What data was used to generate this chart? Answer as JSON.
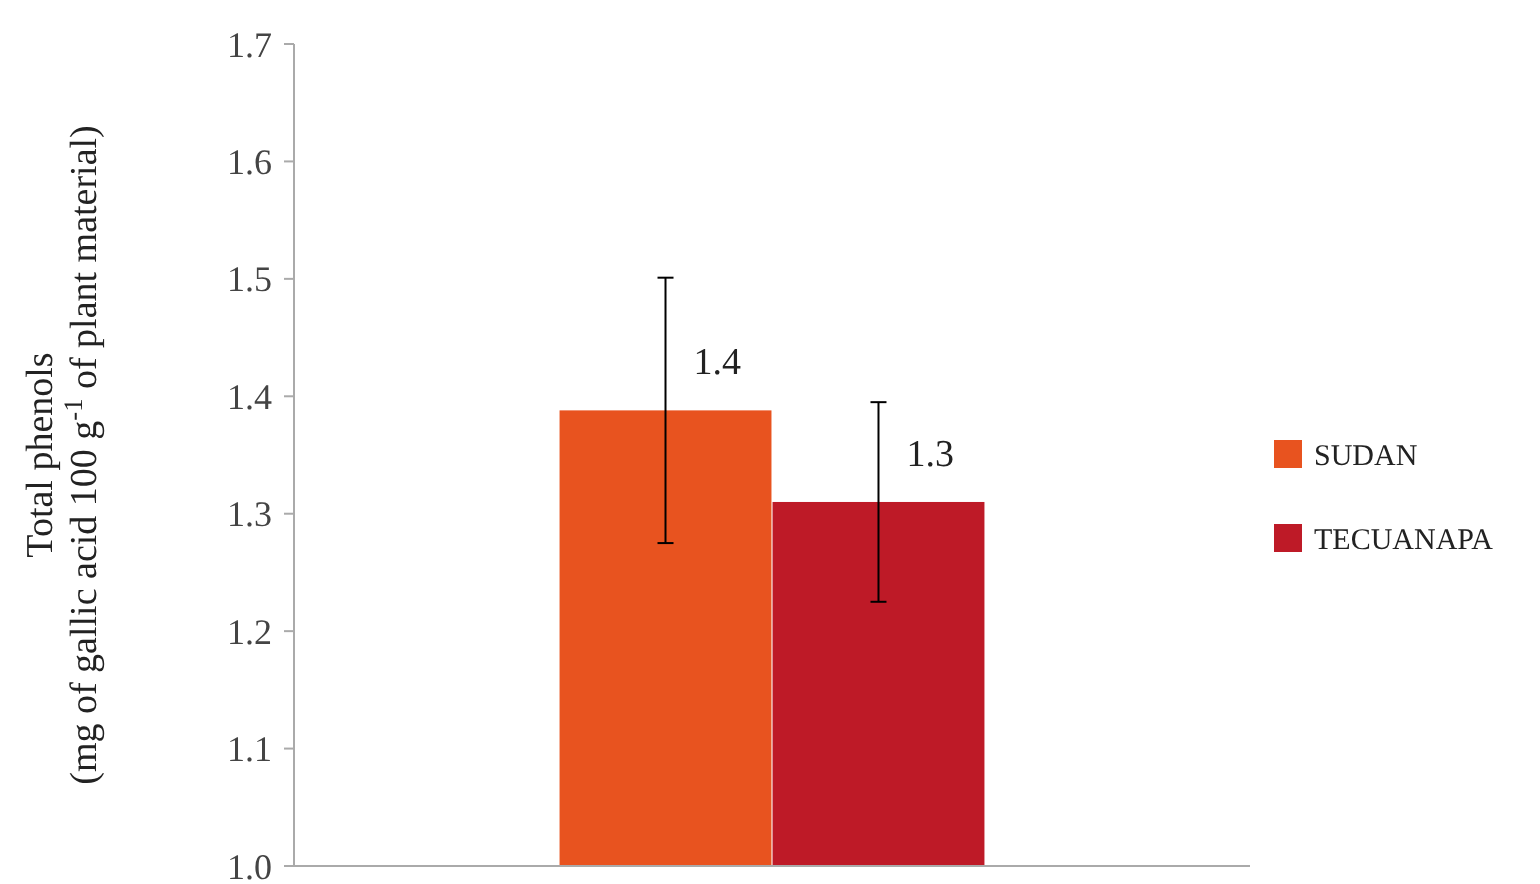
{
  "chart_data": {
    "type": "bar",
    "categories": [
      null
    ],
    "ylabel": "Total phenols\n(mg of gallic acid 100 g$^{-1}$ of plant material)",
    "ylim": [
      1.0,
      1.7
    ],
    "yticks": [
      {
        "value": 1.0,
        "label": "1.0"
      },
      1.1,
      1.2,
      1.3,
      1.4,
      1.5,
      1.6,
      1.7
    ],
    "legend": "right",
    "series": [
      {
        "name": "SUDAN",
        "color": "#e8531f",
        "values": [
          1.388
        ],
        "errors": [
          0.113
        ],
        "value_labels": [
          "1.4"
        ]
      },
      {
        "name": "TECUANAPA",
        "color": "#be1a27",
        "values": [
          1.31
        ],
        "errors": [
          0.085
        ],
        "value_labels": [
          "1.3"
        ]
      }
    ]
  }
}
